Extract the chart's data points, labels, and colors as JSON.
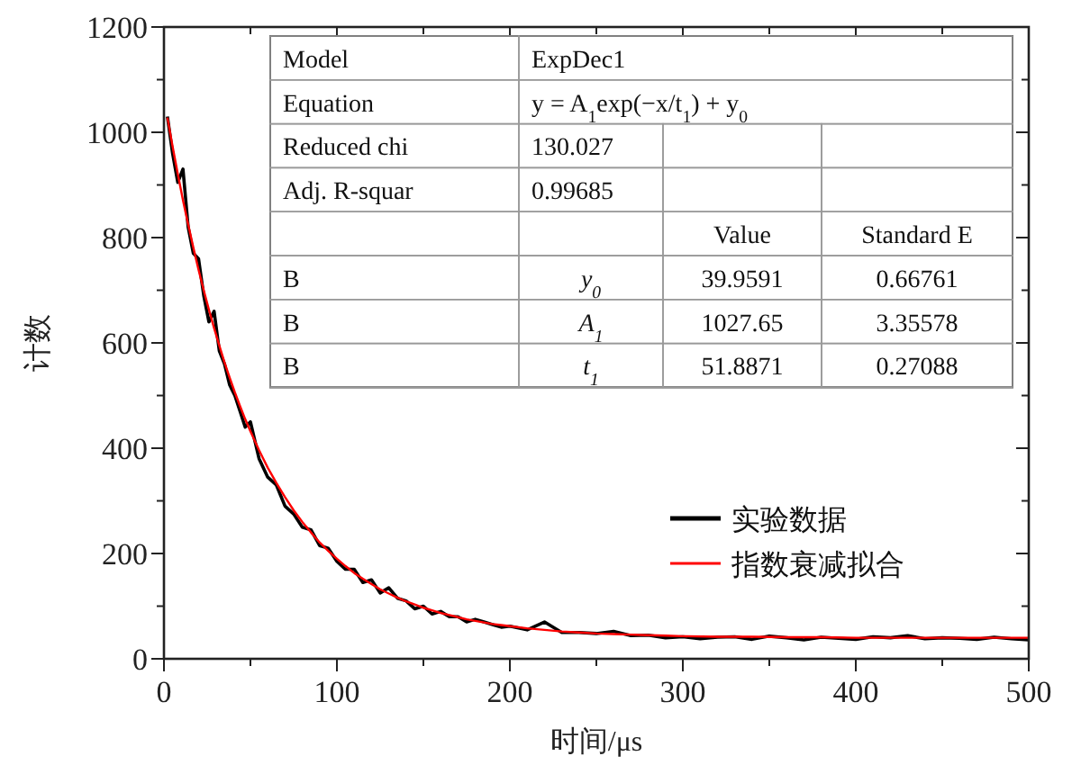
{
  "chart_data": {
    "type": "line",
    "xlabel": "时间/μs",
    "ylabel": "计数",
    "xlim": [
      0,
      500
    ],
    "ylim": [
      0,
      1200
    ],
    "xticks": [
      0,
      {
        "value": 50,
        "label": null
      },
      100,
      {
        "value": 150,
        "label": null
      },
      200,
      {
        "value": 250,
        "label": null
      },
      300,
      {
        "value": 350,
        "label": null
      },
      400,
      {
        "value": 450,
        "label": null
      },
      500
    ],
    "yticks": [
      0,
      {
        "value": 100,
        "label": null
      },
      200,
      {
        "value": 300,
        "label": null
      },
      400,
      {
        "value": 500,
        "label": null
      },
      600,
      {
        "value": 700,
        "label": null
      },
      800,
      {
        "value": 900,
        "label": null
      },
      1000,
      {
        "value": 1100,
        "label": null
      },
      1200
    ],
    "legend": "right",
    "grid": false,
    "series": [
      {
        "name": "实验数据",
        "color": "#000000",
        "x": [
          2,
          5,
          8,
          11,
          14,
          17,
          20,
          23,
          26,
          29,
          32,
          35,
          38,
          41,
          44,
          47,
          50,
          55,
          60,
          65,
          70,
          75,
          80,
          85,
          90,
          95,
          100,
          105,
          110,
          115,
          120,
          125,
          130,
          135,
          140,
          145,
          150,
          155,
          160,
          165,
          170,
          175,
          180,
          185,
          190,
          195,
          200,
          210,
          220,
          230,
          240,
          250,
          260,
          270,
          280,
          290,
          300,
          310,
          320,
          330,
          340,
          350,
          360,
          370,
          380,
          390,
          400,
          410,
          420,
          430,
          440,
          450,
          460,
          470,
          480,
          490,
          500
        ],
        "values": [
          1030,
          960,
          905,
          930,
          820,
          770,
          760,
          690,
          640,
          660,
          585,
          560,
          520,
          500,
          470,
          440,
          450,
          380,
          345,
          330,
          290,
          275,
          250,
          245,
          215,
          210,
          185,
          170,
          170,
          145,
          150,
          125,
          135,
          115,
          110,
          95,
          100,
          85,
          90,
          80,
          80,
          70,
          75,
          70,
          65,
          60,
          62,
          55,
          70,
          50,
          50,
          48,
          52,
          44,
          45,
          40,
          42,
          38,
          41,
          42,
          37,
          43,
          40,
          36,
          41,
          39,
          37,
          42,
          40,
          44,
          38,
          40,
          39,
          37,
          41,
          38,
          36
        ]
      },
      {
        "name": "指数衰减拟合",
        "color": "#ff0000",
        "x": [
          2,
          5,
          8,
          11,
          14,
          17,
          20,
          23,
          26,
          29,
          32,
          35,
          38,
          41,
          44,
          47,
          50,
          55,
          60,
          65,
          70,
          75,
          80,
          85,
          90,
          95,
          100,
          105,
          110,
          115,
          120,
          125,
          130,
          135,
          140,
          145,
          150,
          155,
          160,
          165,
          170,
          175,
          180,
          185,
          190,
          195,
          200,
          210,
          220,
          230,
          240,
          250,
          260,
          270,
          280,
          290,
          300,
          320,
          340,
          360,
          380,
          400,
          450,
          500
        ],
        "values": [
          1028,
          973,
          921,
          871,
          825,
          781,
          739,
          700,
          663,
          628,
          595,
          563,
          534,
          506,
          480,
          455,
          432,
          396,
          363,
          334,
          307,
          282,
          260,
          240,
          221,
          205,
          190,
          176,
          163,
          152,
          142,
          132,
          124,
          116,
          109,
          103,
          97,
          92,
          87,
          83,
          79,
          75,
          72,
          69,
          66,
          64,
          62,
          58,
          55,
          52,
          50,
          48,
          47,
          46,
          45,
          44,
          43,
          42,
          42,
          41,
          41,
          40,
          40,
          40
        ]
      }
    ],
    "annotations": [
      "Model",
      "ExpDec1",
      "Equation",
      "y = A$_{1}$exp(−x/t$_{1}$) + y$_{0}$",
      "Reduced chi",
      "130.027",
      "Adj. R-squar",
      "0.99685",
      "Value",
      "Standard E",
      "B",
      "y$_{0}$",
      "39.9591",
      "0.66761",
      "B",
      "A$_{1}$",
      "1027.65",
      "3.35578",
      "B",
      "t$_{1}$",
      "51.8871",
      "0.27088"
    ]
  }
}
